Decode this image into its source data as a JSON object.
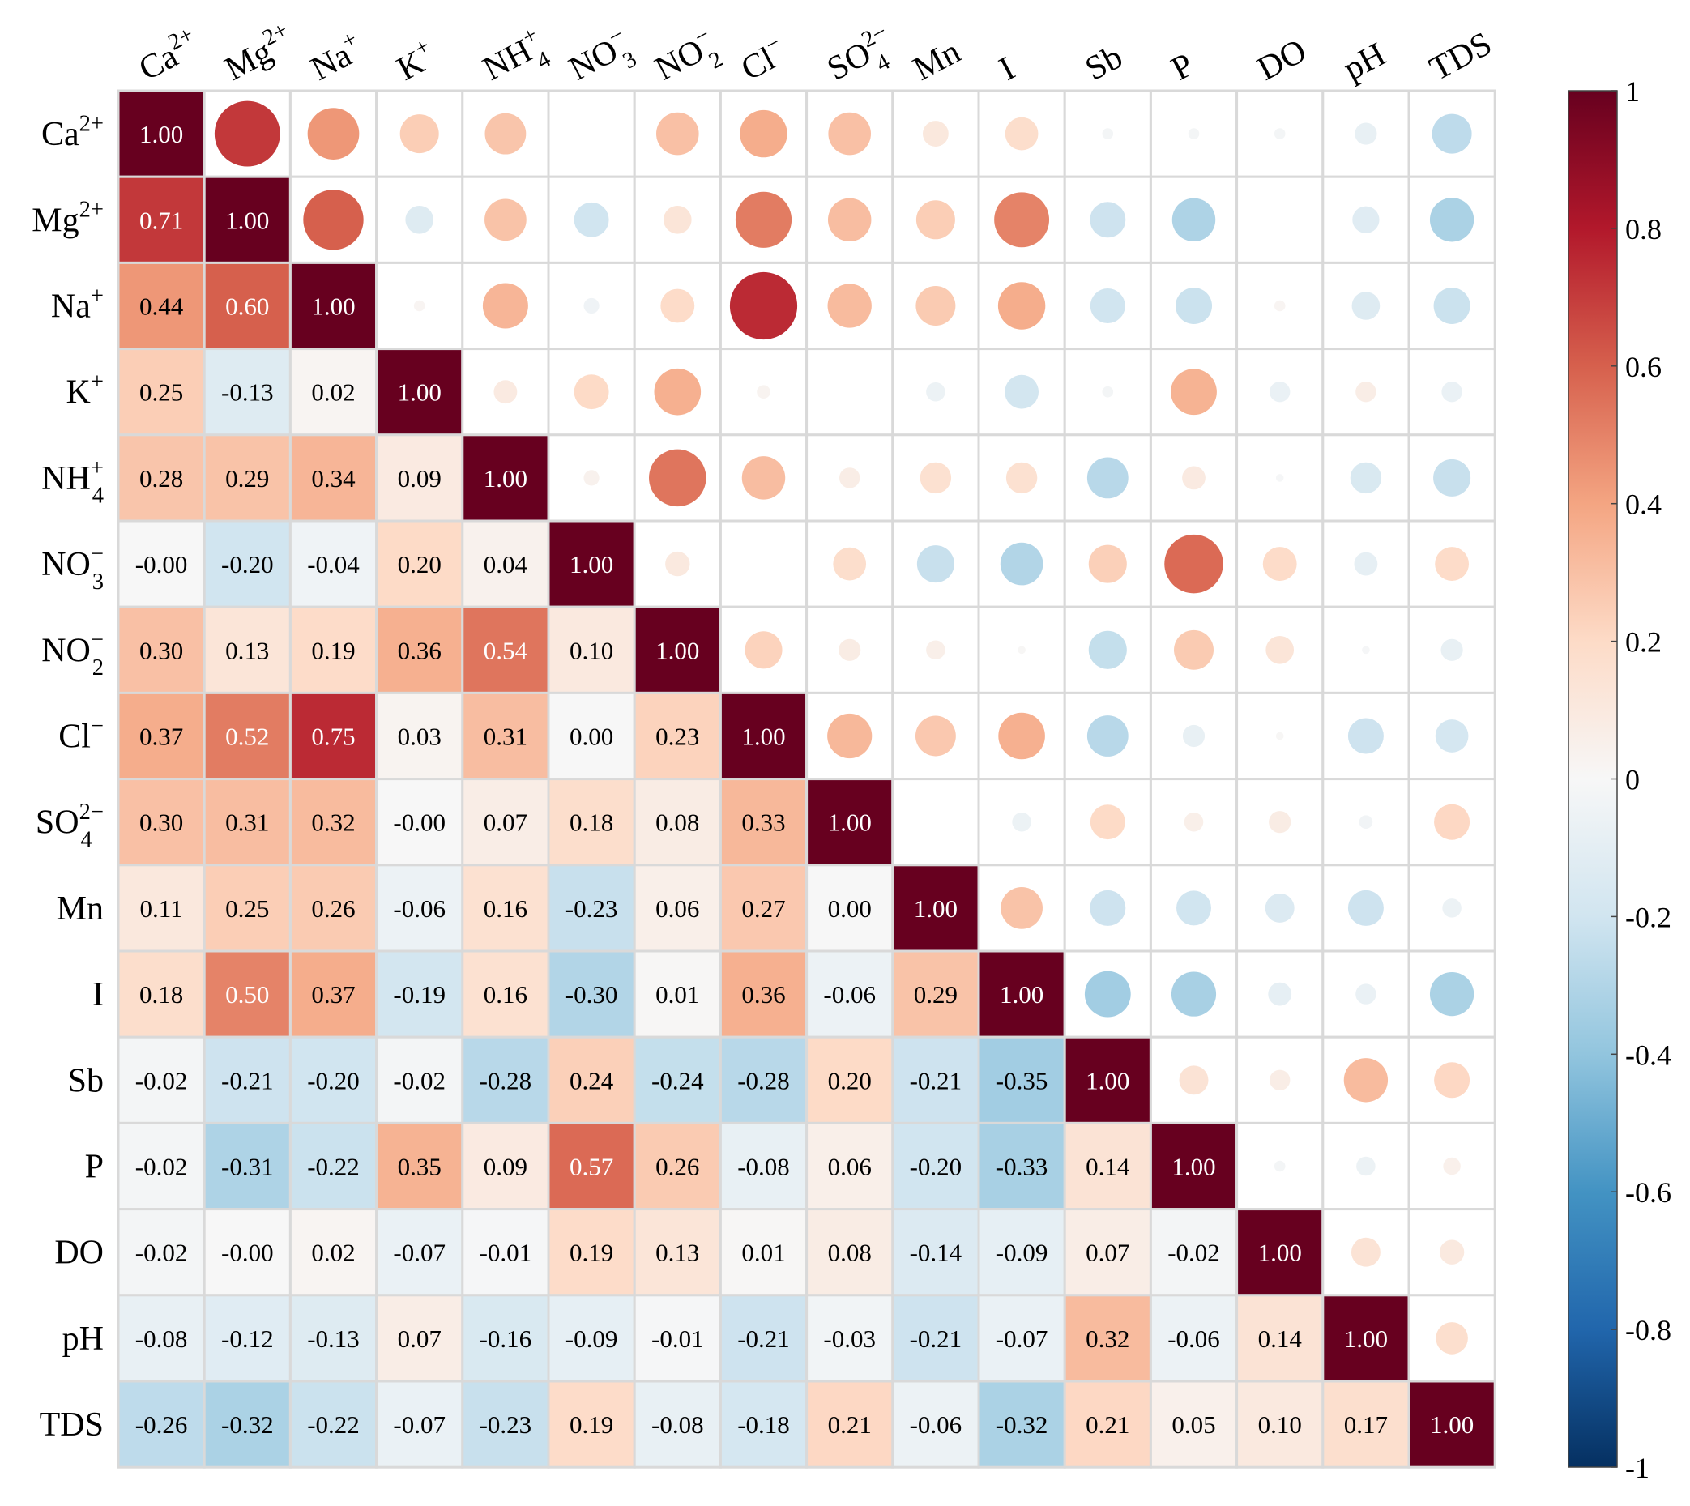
{
  "chart_data": {
    "type": "heatmap",
    "variant": "correlation-matrix (values lower triangle, circles upper triangle)",
    "title": "",
    "labels": [
      "Ca2+",
      "Mg2+",
      "Na+",
      "K+",
      "NH4+",
      "NO3-",
      "NO2-",
      "Cl-",
      "SO42-",
      "Mn",
      "I",
      "Sb",
      "P",
      "DO",
      "pH",
      "TDS"
    ],
    "labels_display": [
      {
        "base": "Ca",
        "sup": "2+",
        "sub": ""
      },
      {
        "base": "Mg",
        "sup": "2+",
        "sub": ""
      },
      {
        "base": "Na",
        "sup": "+",
        "sub": ""
      },
      {
        "base": "K",
        "sup": "+",
        "sub": ""
      },
      {
        "base": "NH",
        "sup": "+",
        "sub": "4"
      },
      {
        "base": "NO",
        "sup": "−",
        "sub": "3"
      },
      {
        "base": "NO",
        "sup": "−",
        "sub": "2"
      },
      {
        "base": "Cl",
        "sup": "−",
        "sub": ""
      },
      {
        "base": "SO",
        "sup": "2−",
        "sub": "4"
      },
      {
        "base": "Mn",
        "sup": "",
        "sub": ""
      },
      {
        "base": "I",
        "sup": "",
        "sub": ""
      },
      {
        "base": "Sb",
        "sup": "",
        "sub": ""
      },
      {
        "base": "P",
        "sup": "",
        "sub": ""
      },
      {
        "base": "DO",
        "sup": "",
        "sub": ""
      },
      {
        "base": "pH",
        "sup": "",
        "sub": ""
      },
      {
        "base": "TDS",
        "sup": "",
        "sub": ""
      }
    ],
    "matrix": [
      [
        1.0,
        0.71,
        0.44,
        0.25,
        0.28,
        -0.0,
        0.3,
        0.37,
        0.3,
        0.11,
        0.18,
        -0.02,
        -0.02,
        -0.02,
        -0.08,
        -0.26
      ],
      [
        0.71,
        1.0,
        0.6,
        -0.13,
        0.29,
        -0.2,
        0.13,
        0.52,
        0.31,
        0.25,
        0.5,
        -0.21,
        -0.31,
        -0.0,
        -0.12,
        -0.32
      ],
      [
        0.44,
        0.6,
        1.0,
        0.02,
        0.34,
        -0.04,
        0.19,
        0.75,
        0.32,
        0.26,
        0.37,
        -0.2,
        -0.22,
        0.02,
        -0.13,
        -0.22
      ],
      [
        0.25,
        -0.13,
        0.02,
        1.0,
        0.09,
        0.2,
        0.36,
        0.03,
        -0.0,
        -0.06,
        -0.19,
        -0.02,
        0.35,
        -0.07,
        0.07,
        -0.07
      ],
      [
        0.28,
        0.29,
        0.34,
        0.09,
        1.0,
        0.04,
        0.54,
        0.31,
        0.07,
        0.16,
        0.16,
        -0.28,
        0.09,
        -0.01,
        -0.16,
        -0.23
      ],
      [
        -0.0,
        -0.2,
        -0.04,
        0.2,
        0.04,
        1.0,
        0.1,
        0.0,
        0.18,
        -0.23,
        -0.3,
        0.24,
        0.57,
        0.19,
        -0.09,
        0.19
      ],
      [
        0.3,
        0.13,
        0.19,
        0.36,
        0.54,
        0.1,
        1.0,
        0.23,
        0.08,
        0.06,
        0.01,
        -0.24,
        0.26,
        0.13,
        -0.01,
        -0.08
      ],
      [
        0.37,
        0.52,
        0.75,
        0.03,
        0.31,
        0.0,
        0.23,
        1.0,
        0.33,
        0.27,
        0.36,
        -0.28,
        -0.08,
        0.01,
        -0.21,
        -0.18
      ],
      [
        0.3,
        0.31,
        0.32,
        -0.0,
        0.07,
        0.18,
        0.08,
        0.33,
        1.0,
        0.0,
        -0.06,
        0.2,
        0.06,
        0.08,
        -0.03,
        0.21
      ],
      [
        0.11,
        0.25,
        0.26,
        -0.06,
        0.16,
        -0.23,
        0.06,
        0.27,
        0.0,
        1.0,
        0.29,
        -0.21,
        -0.2,
        -0.14,
        -0.21,
        -0.06
      ],
      [
        0.18,
        0.5,
        0.37,
        -0.19,
        0.16,
        -0.3,
        0.01,
        0.36,
        -0.06,
        0.29,
        1.0,
        -0.35,
        -0.33,
        -0.09,
        -0.07,
        -0.32
      ],
      [
        -0.02,
        -0.21,
        -0.2,
        -0.02,
        -0.28,
        0.24,
        -0.24,
        -0.28,
        0.2,
        -0.21,
        -0.35,
        1.0,
        0.14,
        0.07,
        0.32,
        0.21
      ],
      [
        -0.02,
        -0.31,
        -0.22,
        0.35,
        0.09,
        0.57,
        0.26,
        -0.08,
        0.06,
        -0.2,
        -0.33,
        0.14,
        1.0,
        -0.02,
        -0.06,
        0.05
      ],
      [
        -0.02,
        -0.0,
        0.02,
        -0.07,
        -0.01,
        0.19,
        0.13,
        0.01,
        0.08,
        -0.14,
        -0.09,
        0.07,
        -0.02,
        1.0,
        0.14,
        0.1
      ],
      [
        -0.08,
        -0.12,
        -0.13,
        0.07,
        -0.16,
        -0.09,
        -0.01,
        -0.21,
        -0.03,
        -0.21,
        -0.07,
        0.32,
        -0.06,
        0.14,
        1.0,
        0.17
      ],
      [
        -0.26,
        -0.32,
        -0.22,
        -0.07,
        -0.23,
        0.19,
        -0.08,
        -0.18,
        0.21,
        -0.06,
        -0.32,
        0.21,
        0.05,
        0.1,
        0.17,
        1.0
      ]
    ],
    "value_labels": [
      [
        "1.00",
        "",
        "",
        "",
        "",
        "",
        "",
        "",
        "",
        "",
        "",
        "",
        "",
        "",
        "",
        ""
      ],
      [
        "0.71",
        "1.00",
        "",
        "",
        "",
        "",
        "",
        "",
        "",
        "",
        "",
        "",
        "",
        "",
        "",
        ""
      ],
      [
        "0.44",
        "0.60",
        "1.00",
        "",
        "",
        "",
        "",
        "",
        "",
        "",
        "",
        "",
        "",
        "",
        "",
        ""
      ],
      [
        "0.25",
        "-0.13",
        "0.02",
        "1.00",
        "",
        "",
        "",
        "",
        "",
        "",
        "",
        "",
        "",
        "",
        "",
        ""
      ],
      [
        "0.28",
        "0.29",
        "0.34",
        "0.09",
        "1.00",
        "",
        "",
        "",
        "",
        "",
        "",
        "",
        "",
        "",
        "",
        ""
      ],
      [
        "-0.00",
        "-0.20",
        "-0.04",
        "0.20",
        "0.04",
        "1.00",
        "",
        "",
        "",
        "",
        "",
        "",
        "",
        "",
        "",
        ""
      ],
      [
        "0.30",
        "0.13",
        "0.19",
        "0.36",
        "0.54",
        "0.10",
        "1.00",
        "",
        "",
        "",
        "",
        "",
        "",
        "",
        "",
        ""
      ],
      [
        "0.37",
        "0.52",
        "0.75",
        "0.03",
        "0.31",
        "0.00",
        "0.23",
        "1.00",
        "",
        "",
        "",
        "",
        "",
        "",
        "",
        ""
      ],
      [
        "0.30",
        "0.31",
        "0.32",
        "-0.00",
        "0.07",
        "0.18",
        "0.08",
        "0.33",
        "1.00",
        "",
        "",
        "",
        "",
        "",
        "",
        ""
      ],
      [
        "0.11",
        "0.25",
        "0.26",
        "-0.06",
        "0.16",
        "-0.23",
        "0.06",
        "0.27",
        "0.00",
        "1.00",
        "",
        "",
        "",
        "",
        "",
        ""
      ],
      [
        "0.18",
        "0.50",
        "0.37",
        "-0.19",
        "0.16",
        "-0.30",
        "0.01",
        "0.36",
        "-0.06",
        "0.29",
        "1.00",
        "",
        "",
        "",
        "",
        ""
      ],
      [
        "-0.02",
        "-0.21",
        "-0.20",
        "-0.02",
        "-0.28",
        "0.24",
        "-0.24",
        "-0.28",
        "0.20",
        "-0.21",
        "-0.35",
        "1.00",
        "",
        "",
        "",
        ""
      ],
      [
        "-0.02",
        "-0.31",
        "-0.22",
        "0.35",
        "0.09",
        "0.57",
        "0.26",
        "-0.08",
        "0.06",
        "-0.20",
        "-0.33",
        "0.14",
        "1.00",
        "",
        "",
        ""
      ],
      [
        "-0.02",
        "-0.00",
        "0.02",
        "-0.07",
        "-0.01",
        "0.19",
        "0.13",
        "0.01",
        "0.08",
        "-0.14",
        "-0.09",
        "0.07",
        "-0.02",
        "1.00",
        "",
        ""
      ],
      [
        "-0.08",
        "-0.12",
        "-0.13",
        "0.07",
        "-0.16",
        "-0.09",
        "-0.01",
        "-0.21",
        "-0.03",
        "-0.21",
        "-0.07",
        "0.32",
        "-0.06",
        "0.14",
        "1.00",
        ""
      ],
      [
        "-0.26",
        "-0.32",
        "-0.22",
        "-0.07",
        "-0.23",
        "0.19",
        "-0.08",
        "-0.18",
        "0.21",
        "-0.06",
        "-0.32",
        "0.21",
        "0.05",
        "0.10",
        "0.17",
        "1.00"
      ]
    ],
    "colorbar": {
      "range": [
        -1,
        1
      ],
      "ticks": [
        1,
        0.8,
        0.6,
        0.4,
        0.2,
        0,
        -0.2,
        -0.4,
        -0.6,
        -0.8,
        -1
      ],
      "tick_labels": [
        "1",
        "0.8",
        "0.6",
        "0.4",
        "0.2",
        "0",
        "-0.2",
        "-0.4",
        "-0.6",
        "-0.8",
        "-1"
      ],
      "colormap": "RdBu_r",
      "stops": [
        "#053061",
        "#2166ac",
        "#4393c3",
        "#92c5de",
        "#d1e5f0",
        "#f7f7f7",
        "#fddbc7",
        "#f4a582",
        "#d6604d",
        "#b2182b",
        "#67001f"
      ]
    },
    "grid_color": "#d9d9d9",
    "text_color_dark": "#000000",
    "text_color_light": "#ffffff"
  }
}
